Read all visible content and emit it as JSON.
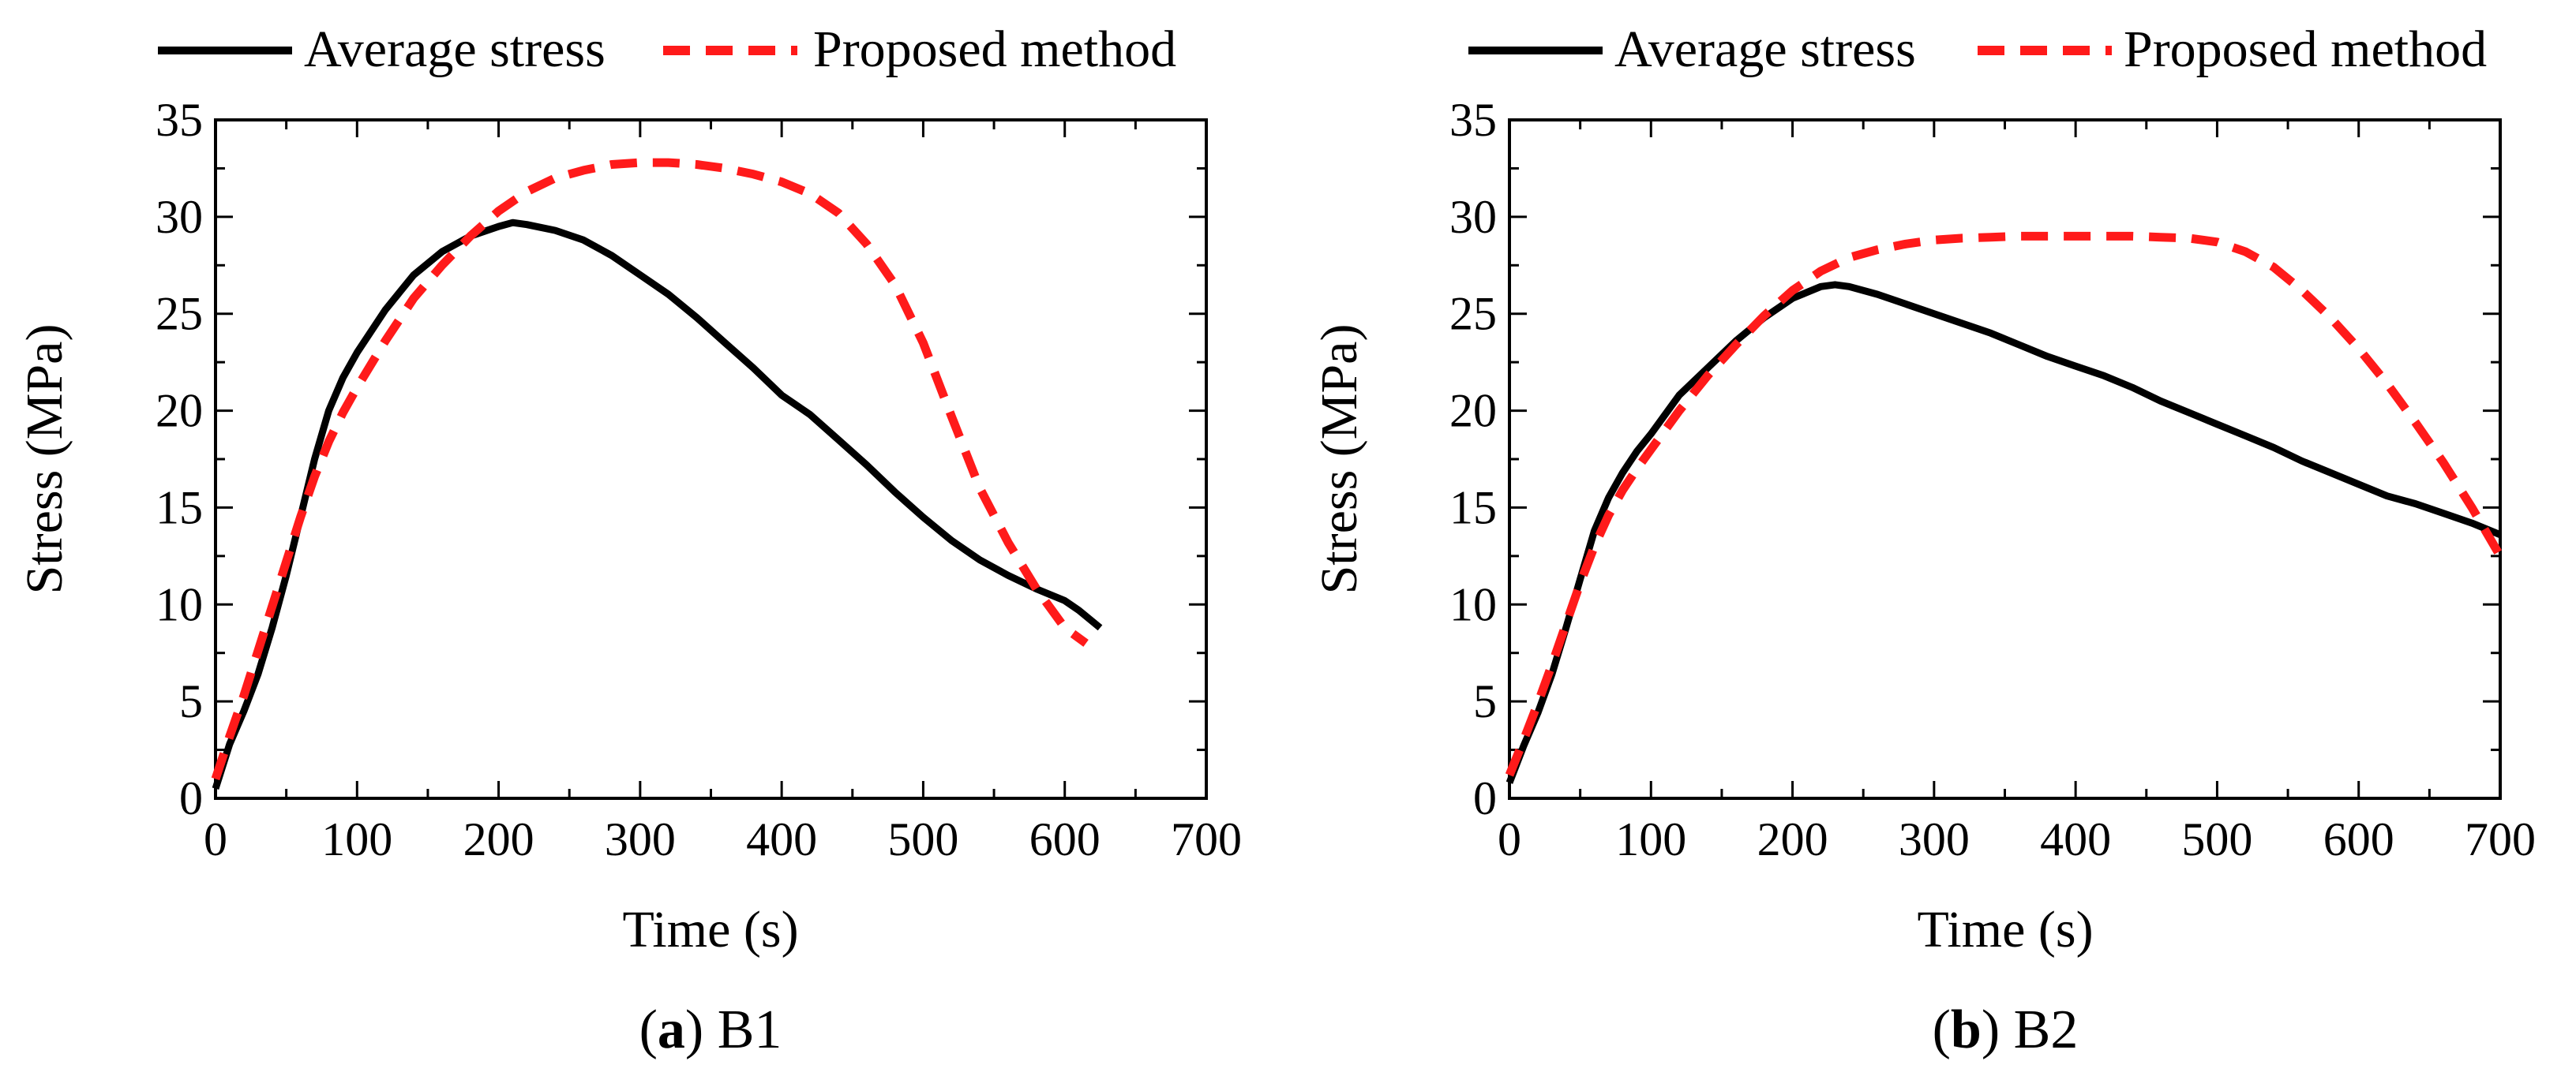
{
  "legend": {
    "solid_label": "Average stress",
    "dashed_label": "Proposed method"
  },
  "colors": {
    "average": "#000000",
    "proposed": "#ff1a1a"
  },
  "chart_data": [
    {
      "type": "line",
      "panel_letter": "a",
      "panel_name": "B1",
      "xlabel": "Time (s)",
      "ylabel": "Stress (MPa)",
      "xlim": [
        0,
        700
      ],
      "ylim": [
        0,
        35
      ],
      "xticks": [
        0,
        100,
        200,
        300,
        400,
        500,
        600,
        700
      ],
      "yticks": [
        0,
        5,
        10,
        15,
        20,
        25,
        30,
        35
      ],
      "grid": false,
      "legend_position": "top",
      "series": [
        {
          "name": "Average stress",
          "style": "solid",
          "x": [
            0,
            10,
            20,
            30,
            40,
            50,
            60,
            70,
            80,
            90,
            100,
            120,
            140,
            160,
            180,
            200,
            210,
            220,
            240,
            260,
            280,
            300,
            320,
            340,
            360,
            380,
            400,
            420,
            440,
            460,
            480,
            500,
            520,
            540,
            560,
            580,
            600,
            610,
            625
          ],
          "y": [
            0.5,
            2.8,
            4.5,
            6.4,
            8.8,
            11.5,
            14.5,
            17.5,
            20.0,
            21.7,
            23.0,
            25.2,
            27.0,
            28.2,
            29.0,
            29.5,
            29.7,
            29.6,
            29.3,
            28.8,
            28.0,
            27.0,
            26.0,
            24.8,
            23.5,
            22.2,
            20.8,
            19.8,
            18.5,
            17.2,
            15.8,
            14.5,
            13.3,
            12.3,
            11.5,
            10.8,
            10.2,
            9.7,
            8.8
          ]
        },
        {
          "name": "Proposed method",
          "style": "dashed",
          "x": [
            0,
            10,
            20,
            30,
            40,
            50,
            60,
            70,
            80,
            90,
            100,
            120,
            140,
            160,
            180,
            200,
            220,
            240,
            260,
            280,
            300,
            320,
            340,
            360,
            380,
            400,
            420,
            440,
            460,
            480,
            500,
            520,
            540,
            560,
            580,
            600,
            615
          ],
          "y": [
            1.0,
            3.2,
            5.3,
            7.6,
            9.9,
            12.2,
            14.5,
            16.6,
            18.4,
            19.9,
            21.2,
            23.6,
            25.8,
            27.5,
            29.0,
            30.3,
            31.3,
            32.0,
            32.4,
            32.7,
            32.8,
            32.8,
            32.7,
            32.5,
            32.2,
            31.8,
            31.2,
            30.2,
            28.6,
            26.5,
            23.5,
            19.7,
            16.0,
            13.2,
            10.8,
            8.8,
            8.0
          ]
        }
      ]
    },
    {
      "type": "line",
      "panel_letter": "b",
      "panel_name": "B2",
      "xlabel": "Time (s)",
      "ylabel": "Stress (MPa)",
      "xlim": [
        0,
        700
      ],
      "ylim": [
        0,
        35
      ],
      "xticks": [
        0,
        100,
        200,
        300,
        400,
        500,
        600,
        700
      ],
      "yticks": [
        0,
        5,
        10,
        15,
        20,
        25,
        30,
        35
      ],
      "grid": false,
      "legend_position": "top",
      "series": [
        {
          "name": "Average stress",
          "style": "solid",
          "x": [
            0,
            10,
            20,
            30,
            40,
            50,
            60,
            70,
            80,
            90,
            100,
            120,
            140,
            160,
            180,
            200,
            220,
            230,
            240,
            260,
            280,
            300,
            320,
            340,
            360,
            380,
            400,
            420,
            440,
            460,
            480,
            500,
            520,
            540,
            560,
            580,
            600,
            620,
            640,
            660,
            680,
            700
          ],
          "y": [
            0.8,
            2.7,
            4.4,
            6.4,
            8.8,
            11.3,
            13.8,
            15.5,
            16.8,
            17.9,
            18.8,
            20.8,
            22.2,
            23.6,
            24.8,
            25.8,
            26.4,
            26.5,
            26.4,
            26.0,
            25.5,
            25.0,
            24.5,
            24.0,
            23.4,
            22.8,
            22.3,
            21.8,
            21.2,
            20.5,
            19.9,
            19.3,
            18.7,
            18.1,
            17.4,
            16.8,
            16.2,
            15.6,
            15.2,
            14.7,
            14.2,
            13.6
          ]
        },
        {
          "name": "Proposed method",
          "style": "dashed",
          "x": [
            0,
            10,
            20,
            30,
            40,
            50,
            60,
            70,
            80,
            90,
            100,
            120,
            140,
            160,
            180,
            200,
            220,
            240,
            260,
            280,
            300,
            320,
            340,
            360,
            380,
            400,
            420,
            440,
            460,
            480,
            500,
            520,
            540,
            560,
            580,
            600,
            620,
            640,
            660,
            680,
            700
          ],
          "y": [
            1.2,
            3.0,
            4.9,
            6.9,
            9.0,
            11.1,
            13.0,
            14.6,
            15.9,
            17.0,
            18.0,
            20.0,
            21.8,
            23.4,
            24.9,
            26.2,
            27.2,
            27.9,
            28.3,
            28.6,
            28.8,
            28.9,
            28.95,
            29.0,
            29.0,
            29.0,
            29.0,
            29.0,
            28.95,
            28.9,
            28.7,
            28.2,
            27.4,
            26.2,
            24.8,
            23.2,
            21.4,
            19.4,
            17.3,
            15.0,
            12.5
          ]
        }
      ]
    }
  ]
}
